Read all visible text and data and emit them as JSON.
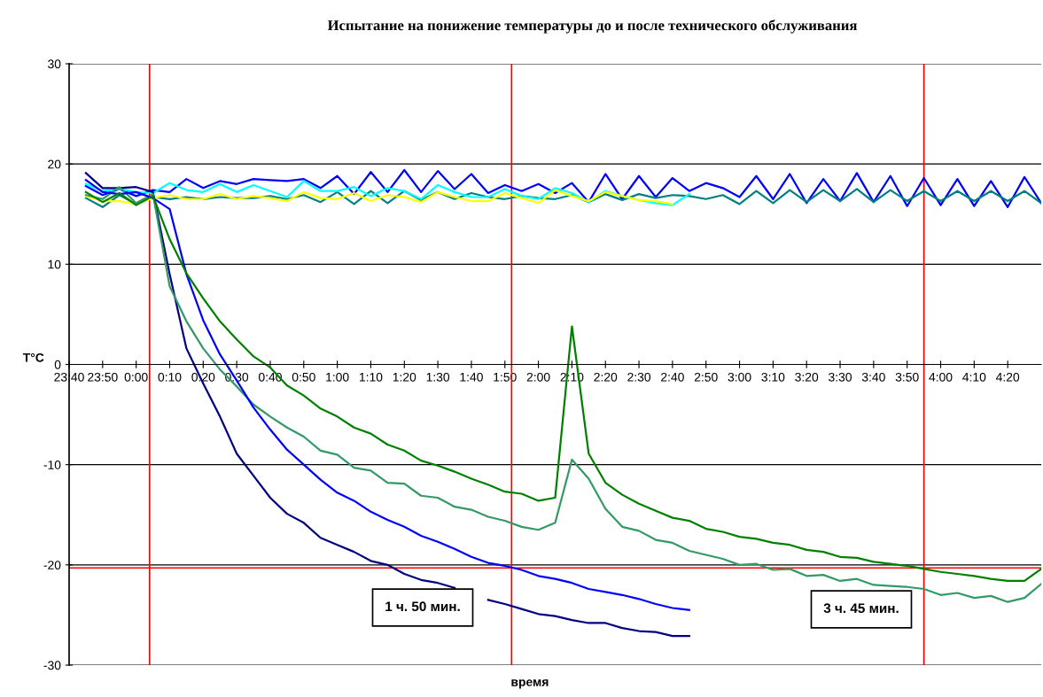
{
  "chart_data": {
    "type": "line",
    "title": "Испытание на понижение температуры до и после технического обслуживания",
    "xlabel": "время",
    "ylabel": "T°C",
    "x": [
      "2000-01-01T23:45",
      "2000-01-01T23:50",
      "2000-01-01T23:55",
      "2000-01-02T00:00",
      "2000-01-02T00:05",
      "2000-01-02T00:10",
      "2000-01-02T00:15",
      "2000-01-02T00:20",
      "2000-01-02T00:25",
      "2000-01-02T00:30",
      "2000-01-02T00:35",
      "2000-01-02T00:40",
      "2000-01-02T00:45",
      "2000-01-02T00:50",
      "2000-01-02T00:55",
      "2000-01-02T01:00",
      "2000-01-02T01:05",
      "2000-01-02T01:10",
      "2000-01-02T01:15",
      "2000-01-02T01:20",
      "2000-01-02T01:25",
      "2000-01-02T01:30",
      "2000-01-02T01:35",
      "2000-01-02T01:40",
      "2000-01-02T01:45",
      "2000-01-02T01:50",
      "2000-01-02T01:55",
      "2000-01-02T02:00",
      "2000-01-02T02:05",
      "2000-01-02T02:10",
      "2000-01-02T02:15",
      "2000-01-02T02:20",
      "2000-01-02T02:25",
      "2000-01-02T02:30",
      "2000-01-02T02:35",
      "2000-01-02T02:40",
      "2000-01-02T02:45",
      "2000-01-02T02:50",
      "2000-01-02T02:55",
      "2000-01-02T03:00",
      "2000-01-02T03:05",
      "2000-01-02T03:10",
      "2000-01-02T03:15",
      "2000-01-02T03:20",
      "2000-01-02T03:25",
      "2000-01-02T03:30",
      "2000-01-02T03:35",
      "2000-01-02T03:40",
      "2000-01-02T03:45",
      "2000-01-02T03:50",
      "2000-01-02T03:55",
      "2000-01-02T04:00",
      "2000-01-02T04:05",
      "2000-01-02T04:10",
      "2000-01-02T04:15",
      "2000-01-02T04:20",
      "2000-01-02T04:25",
      "2000-01-02T04:30"
    ],
    "series": [
      {
        "color": "#0000ff",
        "values": [
          17.8,
          16.9,
          17.5,
          16.8,
          17.4,
          17.2,
          18.5,
          17.6,
          18.3,
          18.0,
          18.5,
          18.4,
          18.3,
          18.5,
          17.6,
          18.8,
          17.0,
          19.2,
          17.2,
          19.4,
          17.2,
          19.3,
          17.5,
          19.0,
          17.1,
          17.9,
          17.3,
          18.0,
          17.1,
          18.1,
          16.2,
          19.0,
          16.5,
          18.8,
          16.7,
          18.6,
          17.3,
          18.1,
          17.6,
          16.7,
          18.8,
          16.5,
          19.0,
          16.1,
          18.5,
          16.3,
          19.1,
          16.2,
          18.8,
          15.8,
          18.6,
          15.9,
          18.5,
          15.8,
          18.3,
          15.7,
          18.7,
          16.1
        ]
      },
      {
        "color": "#008080",
        "values": [
          16.6,
          15.7,
          16.9,
          16.0,
          16.7,
          16.5,
          16.7,
          16.5,
          16.7,
          16.6,
          16.6,
          16.8,
          16.5,
          16.9,
          16.2,
          17.2,
          16.0,
          17.3,
          16.1,
          17.3,
          16.4,
          17.2,
          16.5,
          17.1,
          16.7,
          16.5,
          16.8,
          16.6,
          16.5,
          16.9,
          16.2,
          17.0,
          16.4,
          17.0,
          16.6,
          16.9,
          16.8,
          16.5,
          16.9,
          16.0,
          17.3,
          16.1,
          17.4,
          16.2,
          17.4,
          16.3,
          17.5,
          16.2,
          17.4,
          16.3,
          17.3,
          16.3,
          17.3,
          16.3,
          17.3,
          16.3,
          17.3,
          16.1
        ]
      },
      {
        "color": "#00ffff",
        "values": [
          18.0,
          17.3,
          17.5,
          17.2,
          17.1,
          18.1,
          17.4,
          17.2,
          18.0,
          17.2,
          17.9,
          17.3,
          16.7,
          18.3,
          17.3,
          17.3,
          17.7,
          16.8,
          17.6,
          17.3,
          16.5,
          17.9,
          17.2,
          16.7,
          16.7,
          17.5,
          16.8,
          16.5,
          17.6,
          17.1,
          16.2,
          17.3,
          16.8,
          16.4,
          16.1,
          15.9,
          17.0,
          null,
          null,
          null,
          null,
          null,
          null,
          null,
          null,
          null,
          null,
          null,
          null,
          null,
          null,
          null,
          null,
          null,
          null,
          null,
          null,
          null
        ]
      },
      {
        "color": "#ffff00",
        "values": [
          16.8,
          16.3,
          16.3,
          16.0,
          16.6,
          16.9,
          16.5,
          16.5,
          17.0,
          16.5,
          16.8,
          16.6,
          16.3,
          17.2,
          16.6,
          16.5,
          17.1,
          16.3,
          16.9,
          16.7,
          16.2,
          17.2,
          16.7,
          16.3,
          16.3,
          17.1,
          16.6,
          16.1,
          17.4,
          16.8,
          16.3,
          17.2,
          16.8,
          16.4,
          16.3,
          16.0,
          null,
          null,
          null,
          null,
          null,
          null,
          null,
          null,
          null,
          null,
          null,
          null,
          null,
          null,
          null,
          null,
          null,
          null,
          null,
          null,
          null,
          null
        ]
      },
      {
        "color": "#000080",
        "values": [
          19.1,
          17.6,
          17.6,
          17.7,
          17.2,
          9.0,
          1.6,
          -1.9,
          -5.2,
          -8.9,
          -11.1,
          -13.3,
          -14.9,
          -15.8,
          -17.3,
          -18.0,
          -18.7,
          -19.6,
          -20.0,
          -20.9,
          -21.5,
          -21.8,
          -22.3,
          null,
          -23.5,
          -23.9,
          -24.4,
          -24.9,
          -25.1,
          -25.5,
          -25.8,
          -25.8,
          -26.3,
          -26.6,
          -26.7,
          -27.1,
          -27.1,
          null,
          null,
          null,
          null,
          null,
          null,
          null,
          null,
          null,
          null,
          null,
          null,
          null,
          null,
          null,
          null,
          null,
          null,
          null,
          null,
          null
        ]
      },
      {
        "color": "#339966",
        "values": [
          16.9,
          16.5,
          17.7,
          16.1,
          17.0,
          7.8,
          4.3,
          1.6,
          -0.5,
          -2.2,
          -4.0,
          -5.2,
          -6.3,
          -7.2,
          -8.6,
          -9.0,
          -10.3,
          -10.6,
          -11.8,
          -11.9,
          -13.1,
          -13.3,
          -14.2,
          -14.5,
          -15.2,
          -15.6,
          -16.2,
          -16.5,
          -15.8,
          -9.5,
          -11.4,
          -14.4,
          -16.2,
          -16.6,
          -17.5,
          -17.8,
          -18.6,
          -19.0,
          -19.4,
          -20.0,
          -19.9,
          -20.5,
          -20.4,
          -21.1,
          -21.0,
          -21.6,
          -21.4,
          -22.0,
          -22.1,
          -22.2,
          -22.4,
          -23.0,
          -22.8,
          -23.3,
          -23.1,
          -23.7,
          -23.3,
          -21.9
        ]
      },
      {
        "color": "#0000ff",
        "values": [
          18.4,
          17.2,
          17.0,
          17.2,
          16.6,
          15.5,
          9.0,
          4.4,
          1.0,
          -1.6,
          -4.3,
          -6.5,
          -8.5,
          -10.0,
          -11.5,
          -12.8,
          -13.6,
          -14.7,
          -15.5,
          -16.2,
          -17.1,
          -17.7,
          -18.4,
          -19.2,
          -19.8,
          -20.1,
          -20.5,
          -21.1,
          -21.4,
          -21.8,
          -22.4,
          -22.7,
          -23.0,
          -23.4,
          -23.9,
          -24.3,
          -24.5,
          null,
          null,
          null,
          null,
          null,
          null,
          null,
          null,
          null,
          null,
          null,
          null,
          null,
          null,
          null,
          null,
          null,
          null,
          null,
          null,
          null
        ]
      },
      {
        "color": "#008000",
        "values": [
          17.2,
          16.2,
          17.1,
          15.9,
          16.8,
          12.5,
          9.1,
          6.6,
          4.3,
          2.5,
          0.8,
          -0.3,
          -2.1,
          -3.1,
          -4.4,
          -5.2,
          -6.3,
          -6.9,
          -8.0,
          -8.6,
          -9.6,
          -10.1,
          -10.7,
          -11.4,
          -12.0,
          -12.7,
          -12.9,
          -13.6,
          -13.3,
          3.8,
          -8.9,
          -11.8,
          -13.0,
          -13.9,
          -14.6,
          -15.3,
          -15.6,
          -16.4,
          -16.7,
          -17.2,
          -17.4,
          -17.8,
          -18.0,
          -18.5,
          -18.7,
          -19.2,
          -19.3,
          -19.7,
          -19.9,
          -20.1,
          -20.4,
          -20.7,
          -20.9,
          -21.1,
          -21.4,
          -21.6,
          -21.6,
          -20.4
        ]
      }
    ],
    "xlim": [
      "2000-01-01T23:40",
      "2000-01-02T04:30"
    ],
    "xticks": [
      {
        "value": "2000-01-01T23:40",
        "label": "23:40"
      },
      {
        "value": "2000-01-01T23:50",
        "label": "23:50"
      },
      {
        "value": "2000-01-02T00:00",
        "label": "0:00"
      },
      {
        "value": "2000-01-02T00:10",
        "label": "0:10"
      },
      {
        "value": "2000-01-02T00:20",
        "label": "0:20"
      },
      {
        "value": "2000-01-02T00:30",
        "label": "0:30"
      },
      {
        "value": "2000-01-02T00:40",
        "label": "0:40"
      },
      {
        "value": "2000-01-02T00:50",
        "label": "0:50"
      },
      {
        "value": "2000-01-02T01:00",
        "label": "1:00"
      },
      {
        "value": "2000-01-02T01:10",
        "label": "1:10"
      },
      {
        "value": "2000-01-02T01:20",
        "label": "1:20"
      },
      {
        "value": "2000-01-02T01:30",
        "label": "1:30"
      },
      {
        "value": "2000-01-02T01:40",
        "label": "1:40"
      },
      {
        "value": "2000-01-02T01:50",
        "label": "1:50"
      },
      {
        "value": "2000-01-02T02:00",
        "label": "2:00"
      },
      {
        "value": "2000-01-02T02:10",
        "label": "2:10"
      },
      {
        "value": "2000-01-02T02:20",
        "label": "2:20"
      },
      {
        "value": "2000-01-02T02:30",
        "label": "2:30"
      },
      {
        "value": "2000-01-02T02:40",
        "label": "2:40"
      },
      {
        "value": "2000-01-02T02:50",
        "label": "2:50"
      },
      {
        "value": "2000-01-02T03:00",
        "label": "3:00"
      },
      {
        "value": "2000-01-02T03:10",
        "label": "3:10"
      },
      {
        "value": "2000-01-02T03:20",
        "label": "3:20"
      },
      {
        "value": "2000-01-02T03:30",
        "label": "3:30"
      },
      {
        "value": "2000-01-02T03:40",
        "label": "3:40"
      },
      {
        "value": "2000-01-02T03:50",
        "label": "3:50"
      },
      {
        "value": "2000-01-02T04:00",
        "label": "4:00"
      },
      {
        "value": "2000-01-02T04:10",
        "label": "4:10"
      },
      {
        "value": "2000-01-02T04:20",
        "label": "4:20"
      }
    ],
    "ylim": [
      -30,
      30
    ],
    "yticks": [
      -30,
      -20,
      -10,
      0,
      10,
      20,
      30
    ],
    "grid": "y",
    "marker": "none",
    "line_style": "solid",
    "ref_lines": [
      {
        "axis": "x",
        "value": "2000-01-02T00:04",
        "color": "#ff0000"
      },
      {
        "axis": "x",
        "value": "2000-01-02T01:52",
        "color": "#ff0000"
      },
      {
        "axis": "x",
        "value": "2000-01-02T03:55",
        "color": "#ff0000"
      },
      {
        "axis": "y",
        "value": -20.3,
        "color": "#ff0000"
      }
    ],
    "annotations": [
      "1 ч. 50 мин.",
      "3 ч. 45 мин."
    ]
  }
}
